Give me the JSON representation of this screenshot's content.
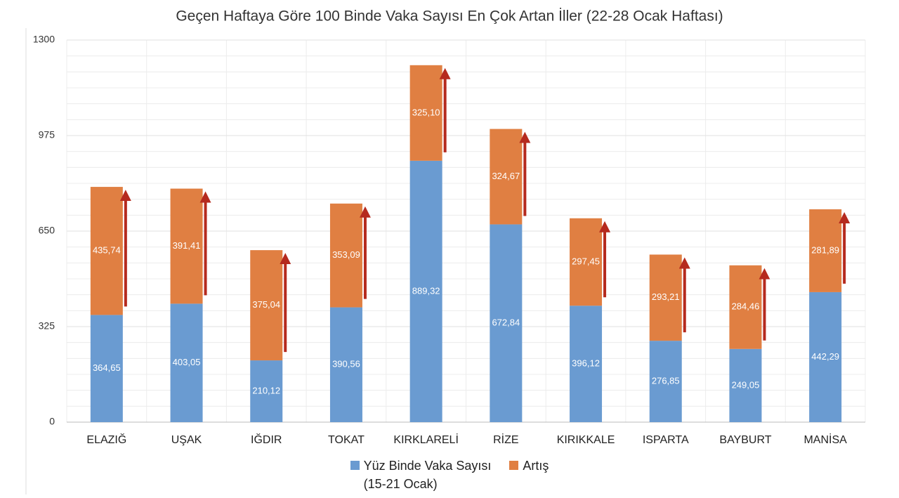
{
  "chart_data": {
    "type": "stacked_bar",
    "title": "Geçen Haftaya Göre 100 Binde Vaka Sayısı En Çok Artan İller (22-28 Ocak Haftası)",
    "categories": [
      "ELAZIĞ",
      "UŞAK",
      "IĞDIR",
      "TOKAT",
      "KIRKLARELİ",
      "RİZE",
      "KIRIKKALE",
      "ISPARTA",
      "BAYBURT",
      "MANİSA"
    ],
    "series": [
      {
        "name": "Yüz Binde Vaka Sayısı\n(15-21 Ocak)",
        "color": "#6a9bd1",
        "values": [
          364.65,
          403.05,
          210.12,
          390.56,
          889.32,
          672.84,
          396.12,
          276.85,
          249.05,
          442.29
        ],
        "value_labels": [
          "364,65",
          "403,05",
          "210,12",
          "390,56",
          "889,32",
          "672,84",
          "396,12",
          "276,85",
          "249,05",
          "442,29"
        ]
      },
      {
        "name": "Artış",
        "color": "#e07f42",
        "values": [
          435.74,
          391.41,
          375.04,
          353.09,
          325.1,
          324.67,
          297.45,
          293.21,
          284.46,
          281.89
        ],
        "value_labels": [
          "435,74",
          "391,41",
          "375,04",
          "353,09",
          "325,10",
          "324,67",
          "297,45",
          "293,21",
          "284,46",
          "281,89"
        ]
      }
    ],
    "ylim": [
      0,
      1300
    ],
    "yticks": [
      0,
      325,
      650,
      975,
      1300
    ],
    "grid": true
  }
}
